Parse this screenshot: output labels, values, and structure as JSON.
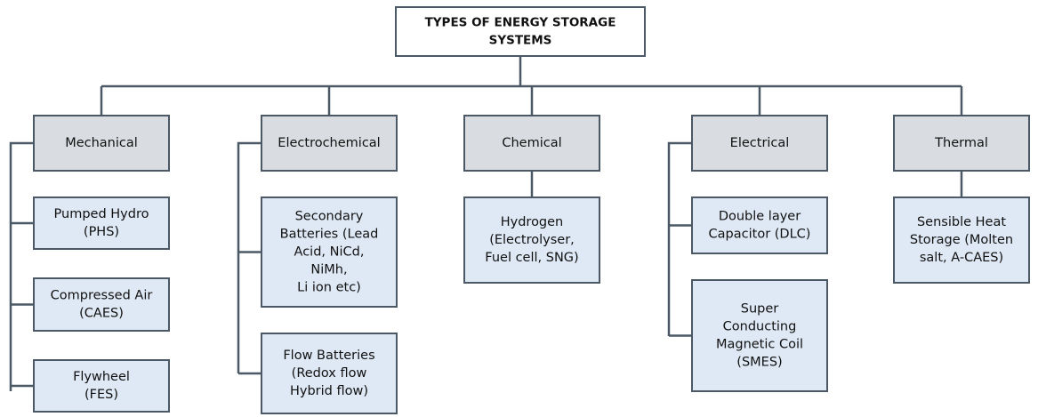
{
  "root": {
    "lines": [
      "TYPES OF ENERGY STORAGE",
      "SYSTEMS"
    ]
  },
  "categories": [
    {
      "label": "Mechanical",
      "children": [
        {
          "lines": [
            "Pumped Hydro",
            "(PHS)"
          ]
        },
        {
          "lines": [
            "Compressed Air",
            "(CAES)"
          ]
        },
        {
          "lines": [
            "Flywheel",
            "(FES)"
          ]
        }
      ]
    },
    {
      "label": "Electrochemical",
      "children": [
        {
          "lines": [
            "Secondary",
            "Batteries (Lead",
            "Acid, NiCd,",
            "NiMh,",
            "Li ion etc)"
          ]
        },
        {
          "lines": [
            "Flow Batteries",
            "(Redox flow",
            "Hybrid flow)"
          ]
        }
      ]
    },
    {
      "label": "Chemical",
      "children": [
        {
          "lines": [
            "Hydrogen",
            "(Electrolyser,",
            "Fuel cell, SNG)"
          ]
        }
      ]
    },
    {
      "label": "Electrical",
      "children": [
        {
          "lines": [
            "Double layer",
            "Capacitor (DLC)"
          ]
        },
        {
          "lines": [
            "Super",
            "Conducting",
            "Magnetic Coil",
            "(SMES)"
          ]
        }
      ]
    },
    {
      "label": "Thermal",
      "children": [
        {
          "lines": [
            "Sensible Heat",
            "Storage (Molten",
            "salt, A-CAES)"
          ]
        }
      ]
    }
  ]
}
